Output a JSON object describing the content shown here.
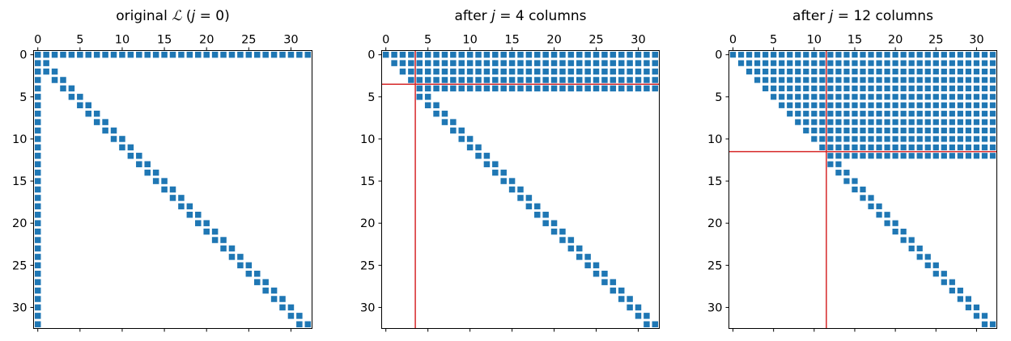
{
  "colors": {
    "marker": "#1f77b4",
    "cursor_line": "#d62728",
    "axes": "#000000",
    "background": "#ffffff"
  },
  "chart_data": [
    {
      "type": "spy",
      "title": "original ℒ (j = 0)",
      "title_parts": [
        "original ",
        "ℒ",
        " (",
        "j",
        " = 0)"
      ],
      "xlabel": "",
      "ylabel": "",
      "xlim": [
        -0.5,
        32.5
      ],
      "ylim": [
        32.5,
        -0.5
      ],
      "x_ticks": [
        0,
        5,
        10,
        15,
        20,
        25,
        30
      ],
      "y_ticks": [
        0,
        5,
        10,
        15,
        20,
        25,
        30
      ],
      "x_tick_labels": [
        "0",
        "5",
        "10",
        "15",
        "20",
        "25",
        "30"
      ],
      "y_tick_labels": [
        "0",
        "5",
        "10",
        "15",
        "20",
        "25",
        "30"
      ],
      "n": 33,
      "columns_processed": 0,
      "structure": "row 0 full (cols 0-32); col 0 full (rows 0-32); rows 1-32 contain diagonal and first sub-diagonal",
      "cursor_lines": []
    },
    {
      "type": "spy",
      "title": "after j = 4 columns",
      "title_parts": [
        "after ",
        "j",
        " = 4 columns"
      ],
      "xlabel": "",
      "ylabel": "",
      "xlim": [
        -0.5,
        32.5
      ],
      "ylim": [
        32.5,
        -0.5
      ],
      "x_ticks": [
        0,
        5,
        10,
        15,
        20,
        25,
        30
      ],
      "y_ticks": [
        0,
        5,
        10,
        15,
        20,
        25,
        30
      ],
      "x_tick_labels": [
        "0",
        "5",
        "10",
        "15",
        "20",
        "25",
        "30"
      ],
      "y_tick_labels": [
        "0",
        "5",
        "10",
        "15",
        "20",
        "25",
        "30"
      ],
      "n": 33,
      "columns_processed": 4,
      "structure": "rows 0-4 filled from the diagonal to col 32; rows 5-32 contain diagonal and first sub-diagonal",
      "cursor_lines": [
        {
          "axis": "x",
          "value": 3.5
        },
        {
          "axis": "y",
          "value": 3.5
        }
      ]
    },
    {
      "type": "spy",
      "title": "after j = 12 columns",
      "title_parts": [
        "after ",
        "j",
        " = 12 columns"
      ],
      "xlabel": "",
      "ylabel": "",
      "xlim": [
        -0.5,
        32.5
      ],
      "ylim": [
        32.5,
        -0.5
      ],
      "x_ticks": [
        0,
        5,
        10,
        15,
        20,
        25,
        30
      ],
      "y_ticks": [
        0,
        5,
        10,
        15,
        20,
        25,
        30
      ],
      "x_tick_labels": [
        "0",
        "5",
        "10",
        "15",
        "20",
        "25",
        "30"
      ],
      "y_tick_labels": [
        "0",
        "5",
        "10",
        "15",
        "20",
        "25",
        "30"
      ],
      "n": 33,
      "columns_processed": 12,
      "structure": "rows 0-12 filled from the diagonal to col 32; rows 13-32 contain diagonal and first sub-diagonal",
      "cursor_lines": [
        {
          "axis": "x",
          "value": 11.5
        },
        {
          "axis": "y",
          "value": 11.5
        }
      ]
    }
  ]
}
